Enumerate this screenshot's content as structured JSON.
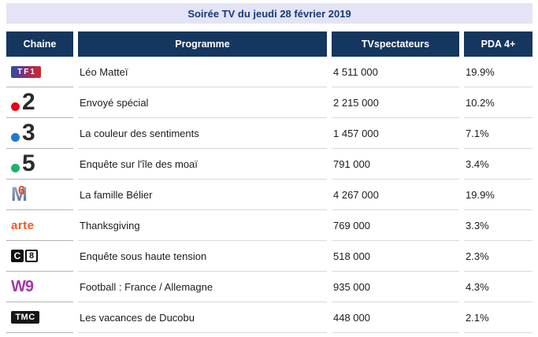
{
  "title": "Soirée TV du jeudi 28 février 2019",
  "table": {
    "columns": [
      {
        "key": "chaine",
        "label": "Chaine"
      },
      {
        "key": "programme",
        "label": "Programme"
      },
      {
        "key": "viewers",
        "label": "TVspectateurs"
      },
      {
        "key": "pda",
        "label": "PDA 4+"
      }
    ],
    "rows": [
      {
        "channel": "tf1",
        "logo": {
          "type": "tf1",
          "text": "TF1"
        },
        "programme": "Léo Matteï",
        "viewers": "4 511 000",
        "pda": "19.9%"
      },
      {
        "channel": "france-2",
        "logo": {
          "type": "dot-digit",
          "digit": "2",
          "dot_color": "#e10b17"
        },
        "programme": "Envoyé spécial",
        "viewers": "2 215 000",
        "pda": "10.2%"
      },
      {
        "channel": "france-3",
        "logo": {
          "type": "dot-digit",
          "digit": "3",
          "dot_color": "#2276d8"
        },
        "programme": "La couleur des sentiments",
        "viewers": "1 457 000",
        "pda": "7.1%"
      },
      {
        "channel": "france-5",
        "logo": {
          "type": "dot-digit",
          "digit": "5",
          "dot_color": "#1fb269"
        },
        "programme": "Enquête sur l'île des moaï",
        "viewers": "791 000",
        "pda": "3.4%"
      },
      {
        "channel": "m6",
        "logo": {
          "type": "m6",
          "letter": "M",
          "digit": "6"
        },
        "programme": "La famille Bélier",
        "viewers": "4 267 000",
        "pda": "19.9%"
      },
      {
        "channel": "arte",
        "logo": {
          "type": "arte",
          "text": "arte"
        },
        "programme": "Thanksgiving",
        "viewers": "769 000",
        "pda": "3.3%"
      },
      {
        "channel": "c8",
        "logo": {
          "type": "c8",
          "letter": "C",
          "digit": "8"
        },
        "programme": "Enquête sous haute tension",
        "viewers": "518 000",
        "pda": "2.3%"
      },
      {
        "channel": "w9",
        "logo": {
          "type": "w9",
          "text": "W9"
        },
        "programme": "Football : France / Allemagne",
        "viewers": "935 000",
        "pda": "4.3%"
      },
      {
        "channel": "tmc",
        "logo": {
          "type": "tmc",
          "text": "TMC"
        },
        "programme": "Les vacances de Ducobu",
        "viewers": "448 000",
        "pda": "2.1%"
      }
    ]
  },
  "colors": {
    "header_bg": "#15365e",
    "header_text": "#ffffff",
    "title_bg": "#e4e4f6",
    "title_text": "#17397a",
    "row_divider": "#d9d9d9",
    "chaine_divider": "#b3b3b3",
    "body_text": "#1c1c1c",
    "france2_dot": "#e10b17",
    "france3_dot": "#2276d8",
    "france5_dot": "#1fb269",
    "m6_six": "#e84b1e",
    "arte_text": "#f95318",
    "w9_text": "#a238a8",
    "c8_box": "#101010",
    "tmc_box": "#17171a"
  },
  "chart_data": {
    "type": "table",
    "title": "Soirée TV du jeudi 28 février 2019",
    "columns": [
      "Chaine",
      "Programme",
      "TVspectateurs",
      "PDA 4+"
    ],
    "rows": [
      [
        "TF1",
        "Léo Matteï",
        4511000,
        "19.9%"
      ],
      [
        "France 2",
        "Envoyé spécial",
        2215000,
        "10.2%"
      ],
      [
        "France 3",
        "La couleur des sentiments",
        1457000,
        "7.1%"
      ],
      [
        "France 5",
        "Enquête sur l'île des moaï",
        791000,
        "3.4%"
      ],
      [
        "M6",
        "La famille Bélier",
        4267000,
        "19.9%"
      ],
      [
        "Arte",
        "Thanksgiving",
        769000,
        "3.3%"
      ],
      [
        "C8",
        "Enquête sous haute tension",
        518000,
        "2.3%"
      ],
      [
        "W9",
        "Football : France / Allemagne",
        935000,
        "4.3%"
      ],
      [
        "TMC",
        "Les vacances de Ducobu",
        448000,
        "2.1%"
      ]
    ]
  }
}
